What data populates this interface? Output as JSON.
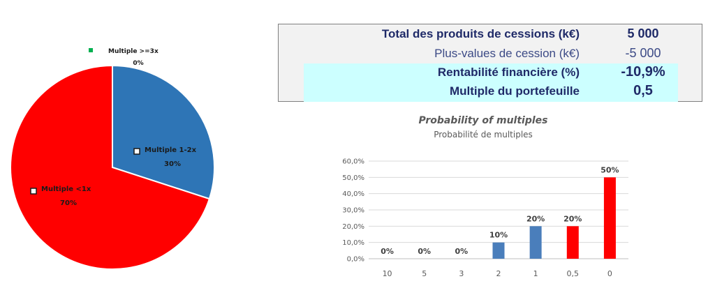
{
  "summary": {
    "rows": [
      {
        "label": "Total des produits de cessions (k€)",
        "value": "5 000"
      },
      {
        "label": "Plus-values de cession (k€)",
        "value": "-5 000"
      },
      {
        "label": "Rentabilité financière (%)",
        "value": "-10,9%"
      },
      {
        "label": "Multiple du portefeuille",
        "value": "0,5"
      }
    ]
  },
  "chart_data": [
    {
      "type": "pie",
      "slices": [
        {
          "label": "Multiple 1-2x",
          "value": 30,
          "display": "30%",
          "color": "#2e75b6"
        },
        {
          "label": "Multiple <1x",
          "value": 70,
          "display": "70%",
          "color": "#ff0000"
        },
        {
          "label": "Multiple >=3x",
          "value": 0,
          "display": "0%",
          "color": "#00b050"
        }
      ]
    },
    {
      "type": "bar",
      "title": "Probability of multiples",
      "subtitle": "Probabilité de multiples",
      "categories": [
        "10",
        "5",
        "3",
        "2",
        "1",
        "0,5",
        "0"
      ],
      "values": [
        0,
        0,
        0,
        10,
        20,
        20,
        50
      ],
      "data_labels": [
        "0%",
        "0%",
        "0%",
        "10%",
        "20%",
        "20%",
        "50%"
      ],
      "colors": [
        "#4a7ebb",
        "#4a7ebb",
        "#4a7ebb",
        "#4a7ebb",
        "#4a7ebb",
        "#ff0000",
        "#ff0000"
      ],
      "ylim": [
        0,
        60
      ],
      "yticks": [
        "0,0%",
        "10,0%",
        "20,0%",
        "30,0%",
        "40,0%",
        "50,0%",
        "60,0%"
      ],
      "grid": true
    }
  ]
}
